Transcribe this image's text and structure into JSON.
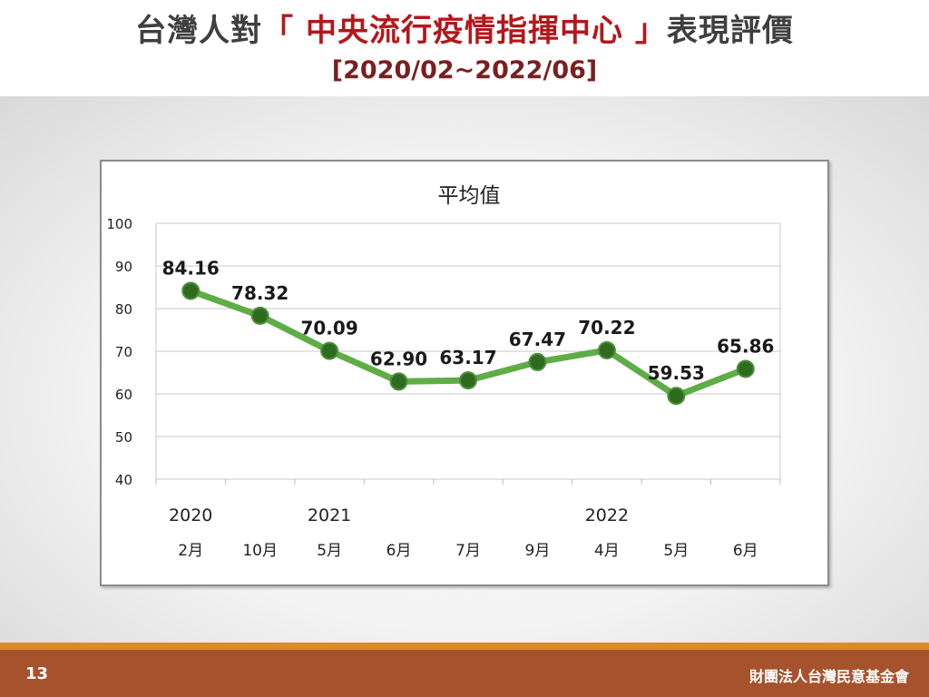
{
  "slide": {
    "title_prefix": "台灣人對",
    "title_highlight": "「 中央流行疫情指揮中心 」",
    "title_suffix": "表現評價",
    "subtitle": "[2020/02~2022/06]",
    "page_number": "13",
    "organization": "財團法人台灣民意基金會"
  },
  "colors": {
    "line": "#5fad46",
    "marker": "#2e6b1f",
    "title_red": "#b4171b",
    "footer": "#a6532d",
    "footer_stripe": "#d98c28"
  },
  "chart_data": {
    "type": "line",
    "title": "平均值",
    "categories": [
      "2月",
      "10月",
      "5月",
      "6月",
      "7月",
      "9月",
      "4月",
      "5月",
      "6月"
    ],
    "year_labels": [
      "2020",
      "",
      "2021",
      "",
      "",
      "",
      "2022",
      "",
      ""
    ],
    "values": [
      84.16,
      78.32,
      70.09,
      62.9,
      63.17,
      67.47,
      70.22,
      59.53,
      65.86
    ],
    "value_labels": [
      "84.16",
      "78.32",
      "70.09",
      "62.90",
      "63.17",
      "67.47",
      "70.22",
      "59.53",
      "65.86"
    ],
    "ylim": [
      40,
      100
    ],
    "yticks": [
      40,
      50,
      60,
      70,
      80,
      90,
      100
    ],
    "grid": true,
    "xlabel": "",
    "ylabel": ""
  }
}
